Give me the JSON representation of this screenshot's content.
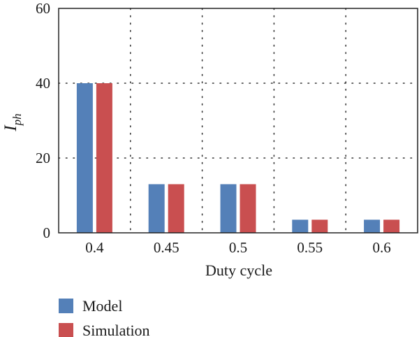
{
  "chart_data": {
    "type": "bar",
    "categories": [
      "0.4",
      "0.45",
      "0.5",
      "0.55",
      "0.6"
    ],
    "series": [
      {
        "name": "Model",
        "values": [
          40,
          13,
          13,
          3.5,
          3.5
        ],
        "color": "#5480b8"
      },
      {
        "name": "Simulation",
        "values": [
          40,
          13,
          13,
          3.5,
          3.5
        ],
        "color": "#c94f50"
      }
    ],
    "xlabel": "Duty cycle",
    "ylabel": {
      "base": "I",
      "subscript": "ph"
    },
    "ylim": [
      0,
      60
    ],
    "yticks": [
      "0",
      "20",
      "40",
      "60"
    ],
    "grid": true,
    "legend_position": "bottom-left"
  }
}
